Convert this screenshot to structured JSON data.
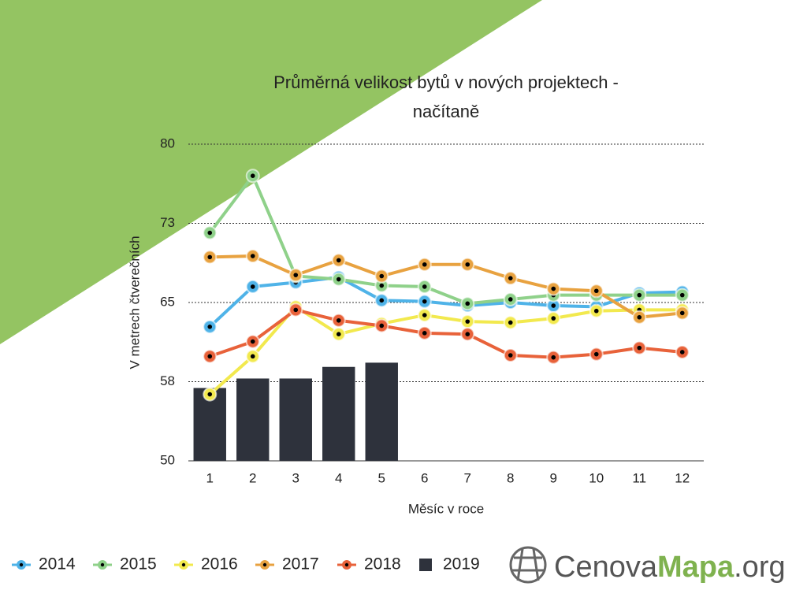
{
  "chart_data": {
    "type": "line",
    "title": "Průměrná velikost bytů v nových projektech -",
    "subtitle": "načítaně",
    "y_label": "V metrech čtverečních",
    "x_label": "Měsíc v roce",
    "categories": [
      "1",
      "2",
      "3",
      "4",
      "5",
      "6",
      "7",
      "8",
      "9",
      "10",
      "11",
      "12"
    ],
    "ylim": [
      50,
      80
    ],
    "yticks": [
      50,
      {
        "value": 57.5,
        "label": "58"
      },
      65,
      {
        "value": 72.5,
        "label": "73"
      },
      80
    ],
    "grid": true,
    "legend": "bottom",
    "series": [
      {
        "name": "2014",
        "type": "line",
        "color": "#4fb3e8",
        "values": [
          62.7,
          66.5,
          66.9,
          67.4,
          65.2,
          65.1,
          64.7,
          65.0,
          64.7,
          64.6,
          65.9,
          66.0
        ]
      },
      {
        "name": "2015",
        "type": "line",
        "color": "#8fd18a",
        "values": [
          71.6,
          77.0,
          67.5,
          67.2,
          66.6,
          66.5,
          64.9,
          65.3,
          65.7,
          65.7,
          65.7,
          65.7
        ]
      },
      {
        "name": "2016",
        "type": "line",
        "color": "#f2e94e",
        "values": [
          56.3,
          59.9,
          64.6,
          62.0,
          63.0,
          63.8,
          63.2,
          63.1,
          63.5,
          64.2,
          64.3,
          64.3
        ]
      },
      {
        "name": "2017",
        "type": "line",
        "color": "#e8a240",
        "values": [
          69.3,
          69.4,
          67.6,
          69.0,
          67.5,
          68.6,
          68.6,
          67.3,
          66.3,
          66.1,
          63.6,
          64.0
        ]
      },
      {
        "name": "2018",
        "type": "line",
        "color": "#e8623a",
        "values": [
          59.9,
          61.3,
          64.3,
          63.3,
          62.8,
          62.1,
          62.0,
          60.0,
          59.8,
          60.1,
          60.7,
          60.3
        ]
      },
      {
        "name": "2019",
        "type": "bar",
        "color": "#2e323c",
        "values": [
          56.9,
          57.8,
          57.8,
          58.9,
          59.3,
          null,
          null,
          null,
          null,
          null,
          null,
          null
        ]
      }
    ]
  },
  "logo": {
    "part1": "Cenova",
    "part2": "Mapa",
    "part3": ".org"
  }
}
